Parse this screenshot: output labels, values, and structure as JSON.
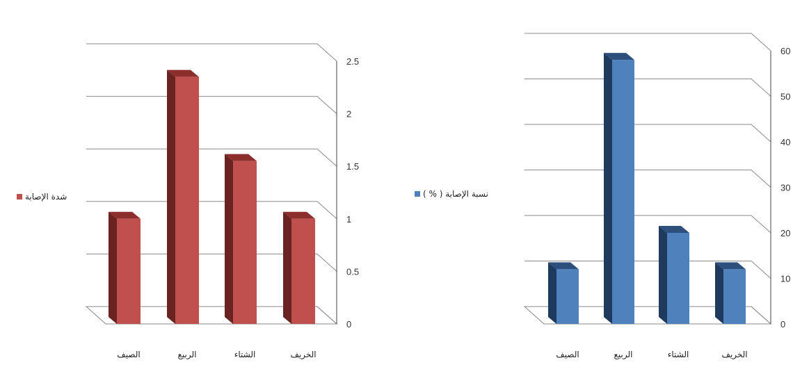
{
  "chart_data": [
    {
      "type": "bar",
      "categories": [
        "الصيف",
        "الربيع",
        "الشتاء",
        "الخريف"
      ],
      "series": [
        {
          "name": "شدة الإصابة",
          "values": [
            1.0,
            2.35,
            1.55,
            1.0
          ]
        }
      ],
      "yticks": [
        "0",
        "0.5",
        "1",
        "1.5",
        "2",
        "2.5"
      ],
      "ylim": [
        0,
        2.5
      ],
      "grid": true,
      "legend": "left",
      "color": "#c0504d",
      "side_color": "#6a2320",
      "top_color": "#8c2e2b"
    },
    {
      "type": "bar",
      "categories": [
        "الصيف",
        "الربيع",
        "الشتاء",
        "الخريف"
      ],
      "series": [
        {
          "name": "نسبة الإصابة ( % )",
          "values": [
            12,
            58,
            20,
            12
          ]
        }
      ],
      "yticks": [
        "0",
        "10",
        "20",
        "30",
        "40",
        "50",
        "60"
      ],
      "ylim": [
        0,
        60
      ],
      "grid": true,
      "legend": "left",
      "color": "#4f81bd",
      "side_color": "#1f3a5f",
      "top_color": "#2c4f7c"
    }
  ]
}
